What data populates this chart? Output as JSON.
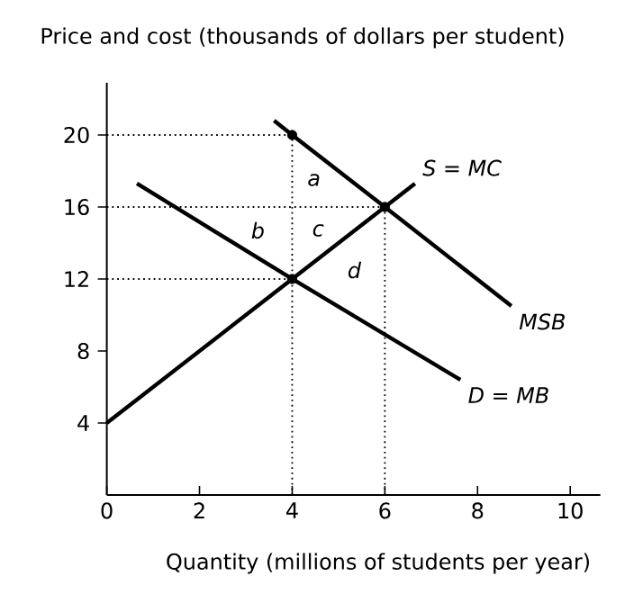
{
  "chart_data": {
    "type": "line",
    "ylabel": "Price and cost (thousands of dollars per student)",
    "xlabel": "Quantity (millions of students per year)",
    "xlim": [
      0,
      10.65
    ],
    "ylim": [
      0,
      22.9
    ],
    "xticks": [
      0,
      2,
      4,
      6,
      8,
      10
    ],
    "yticks": [
      4,
      8,
      12,
      16,
      20
    ],
    "series": [
      {
        "name": "S = MC",
        "color": "#000000",
        "x": [
          0,
          4,
          6,
          6.65
        ],
        "values": [
          4,
          12,
          16,
          17.3
        ]
      },
      {
        "name": "D = MB",
        "color": "#000000",
        "x": [
          0.65,
          4,
          7.63
        ],
        "values": [
          17.3,
          12,
          6.4
        ]
      },
      {
        "name": "MSB",
        "color": "#000000",
        "x": [
          3.61,
          4,
          6,
          8.73
        ],
        "values": [
          20.8,
          20,
          16,
          10.5
        ]
      },
      {
        "type": "scatter",
        "color": "#000000",
        "x": [
          4,
          4,
          6
        ],
        "values": [
          20,
          12,
          16
        ]
      }
    ],
    "ref_lines": [
      {
        "axis": "y",
        "value": 20,
        "line_style": "dotted",
        "color": "#000000"
      },
      {
        "axis": "y",
        "value": 16,
        "line_style": "dotted",
        "color": "#000000"
      },
      {
        "axis": "y",
        "value": 12,
        "line_style": "dotted",
        "color": "#000000"
      },
      {
        "axis": "x",
        "value": 4,
        "line_style": "dotted",
        "color": "#000000"
      },
      {
        "axis": "x",
        "value": 6,
        "line_style": "dotted",
        "color": "#000000"
      }
    ],
    "annotations": [
      "a",
      "b",
      "c",
      "d"
    ]
  }
}
